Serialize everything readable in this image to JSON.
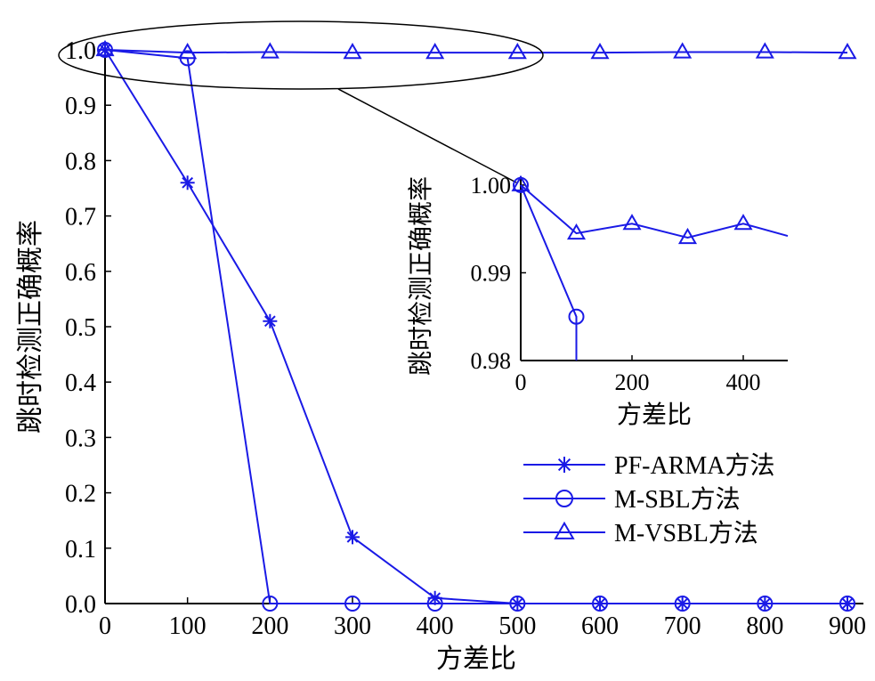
{
  "colors": {
    "series": "#1a1ae6",
    "axis": "#000000",
    "annotation": "#000000"
  },
  "chart_data": [
    {
      "type": "line",
      "title": "",
      "xlabel": "方差比",
      "ylabel": "跳时检测正确概率",
      "xlim": [
        0,
        900
      ],
      "ylim": [
        0,
        1.0
      ],
      "xticks": [
        "0",
        "100",
        "200",
        "300",
        "400",
        "500",
        "600",
        "700",
        "800",
        "900"
      ],
      "yticks": [
        "0.0",
        "0.1",
        "0.2",
        "0.3",
        "0.4",
        "0.5",
        "0.6",
        "0.7",
        "0.8",
        "0.9",
        "1.0"
      ],
      "legend_position": "lower-right",
      "series": [
        {
          "name": "PF-ARMA方法",
          "marker": "star",
          "x": [
            0,
            100,
            200,
            300,
            400,
            500,
            600,
            700,
            800,
            900
          ],
          "y": [
            1.0,
            0.76,
            0.51,
            0.12,
            0.01,
            0.0,
            0.0,
            0.0,
            0.0,
            0.0
          ]
        },
        {
          "name": "M-SBL方法",
          "marker": "circle",
          "x": [
            0,
            100,
            200,
            300,
            400,
            500,
            600,
            700,
            800,
            900
          ],
          "y": [
            1.0,
            0.985,
            0.0,
            0.0,
            0.0,
            0.0,
            0.0,
            0.0,
            0.0,
            0.0
          ]
        },
        {
          "name": "M-VSBL方法",
          "marker": "triangle",
          "x": [
            0,
            100,
            200,
            300,
            400,
            500,
            600,
            700,
            800,
            900
          ],
          "y": [
            1.0,
            0.995,
            0.996,
            0.995,
            0.995,
            0.995,
            0.995,
            0.996,
            0.996,
            0.995
          ]
        }
      ]
    },
    {
      "type": "line",
      "title": "",
      "xlabel": "方差比",
      "ylabel": "跳时检测正确概率",
      "xlim": [
        0,
        480
      ],
      "ylim": [
        0.98,
        1.001
      ],
      "xticks": [
        "0",
        "200",
        "400"
      ],
      "yticks": [
        "0.98",
        "0.99",
        "1.00"
      ],
      "series": [
        {
          "name": "M-SBL方法",
          "marker": "circle",
          "x": [
            0,
            100,
            100
          ],
          "y": [
            1.0,
            0.985,
            0.98
          ]
        },
        {
          "name": "M-VSBL方法",
          "marker": "triangle",
          "x": [
            0,
            100,
            200,
            300,
            400,
            480
          ],
          "y": [
            1.0,
            0.9945,
            0.9956,
            0.994,
            0.9956,
            0.9942
          ]
        }
      ]
    }
  ]
}
